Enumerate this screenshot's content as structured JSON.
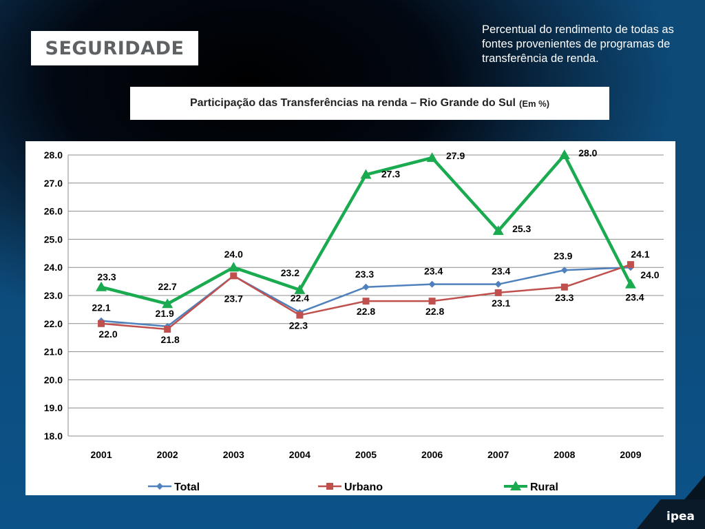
{
  "section": {
    "label": "SEGURIDADE"
  },
  "note": {
    "text": "Percentual do rendimento de todas as fontes provenientes de programas de transferência de renda."
  },
  "chart_title": {
    "main": "Participação das Transferências na renda – Rio Grande do Sul",
    "unit": "(Em %)"
  },
  "logo": {
    "text": "ipea"
  },
  "colors": {
    "Total": "#4f81bd",
    "Urbano": "#c0504d",
    "Rural": "#1aaa4f"
  },
  "chart_data": {
    "type": "line",
    "title": "Participação das Transferências na renda – Rio Grande do Sul (Em %)",
    "xlabel": "",
    "ylabel": "",
    "categories": [
      "2001",
      "2002",
      "2003",
      "2004",
      "2005",
      "2006",
      "2007",
      "2008",
      "2009"
    ],
    "ylim": [
      18.0,
      28.0
    ],
    "yticks": [
      "18.0",
      "19.0",
      "20.0",
      "21.0",
      "22.0",
      "23.0",
      "24.0",
      "25.0",
      "26.0",
      "27.0",
      "28.0"
    ],
    "grid": true,
    "legend": "bottom",
    "series": [
      {
        "name": "Total",
        "marker": "diamond",
        "values": [
          22.1,
          21.9,
          23.7,
          22.4,
          23.3,
          23.4,
          23.4,
          23.9,
          24.0
        ],
        "labels": [
          "22.1",
          "21.9",
          "23.7",
          "22.4",
          "23.3",
          "23.4",
          "23.4",
          "23.9",
          "24.0"
        ]
      },
      {
        "name": "Urbano",
        "marker": "square",
        "values": [
          22.0,
          21.8,
          23.7,
          22.3,
          22.8,
          22.8,
          23.1,
          23.3,
          24.1
        ],
        "labels": [
          "22.0",
          "21.8",
          "",
          "22.3",
          "22.8",
          "22.8",
          "23.1",
          "23.3",
          "24.1"
        ]
      },
      {
        "name": "Rural",
        "marker": "triangle",
        "values": [
          23.3,
          22.7,
          24.0,
          23.2,
          27.3,
          27.9,
          25.3,
          28.0,
          23.4
        ],
        "labels": [
          "23.3",
          "22.7",
          "24.0",
          "23.2",
          "27.3",
          "27.9",
          "25.3",
          "28.0",
          "23.4"
        ]
      }
    ]
  }
}
